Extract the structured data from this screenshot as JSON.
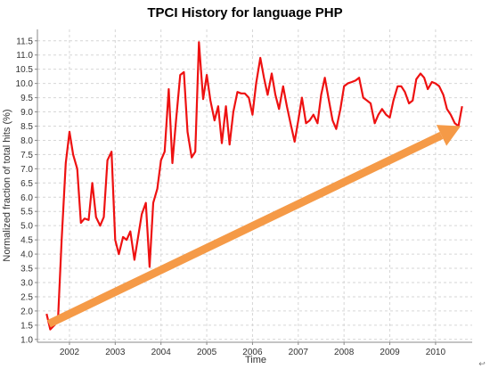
{
  "chart_data": {
    "type": "line",
    "title": "TPCI History for language PHP",
    "xlabel": "Time",
    "ylabel": "Normalized fraction of total hits (%)",
    "xlim": [
      2001.3,
      2010.8
    ],
    "ylim": [
      0.9,
      11.9
    ],
    "x_ticks": [
      2002,
      2003,
      2004,
      2005,
      2006,
      2007,
      2008,
      2009,
      2010
    ],
    "y_ticks": [
      1.0,
      1.5,
      2.0,
      2.5,
      3.0,
      3.5,
      4.0,
      4.5,
      5.0,
      5.5,
      6.0,
      6.5,
      7.0,
      7.5,
      8.0,
      8.5,
      9.0,
      9.5,
      10.0,
      10.5,
      11.0,
      11.5
    ],
    "grid": true,
    "series": [
      {
        "color": "#ee1111",
        "x": [
          2001.5,
          2001.58,
          2001.67,
          2001.75,
          2001.83,
          2001.92,
          2002.0,
          2002.08,
          2002.17,
          2002.25,
          2002.33,
          2002.42,
          2002.5,
          2002.58,
          2002.67,
          2002.75,
          2002.83,
          2002.92,
          2003.0,
          2003.08,
          2003.17,
          2003.25,
          2003.33,
          2003.42,
          2003.5,
          2003.58,
          2003.67,
          2003.75,
          2003.83,
          2003.92,
          2004.0,
          2004.08,
          2004.17,
          2004.25,
          2004.33,
          2004.42,
          2004.5,
          2004.58,
          2004.67,
          2004.75,
          2004.83,
          2004.92,
          2005.0,
          2005.08,
          2005.17,
          2005.25,
          2005.33,
          2005.42,
          2005.5,
          2005.58,
          2005.67,
          2005.75,
          2005.83,
          2005.92,
          2006.0,
          2006.08,
          2006.17,
          2006.25,
          2006.33,
          2006.42,
          2006.5,
          2006.58,
          2006.67,
          2006.75,
          2006.83,
          2006.92,
          2007.0,
          2007.08,
          2007.17,
          2007.25,
          2007.33,
          2007.42,
          2007.5,
          2007.58,
          2007.67,
          2007.75,
          2007.83,
          2007.92,
          2008.0,
          2008.08,
          2008.17,
          2008.25,
          2008.33,
          2008.42,
          2008.5,
          2008.58,
          2008.67,
          2008.75,
          2008.83,
          2008.92,
          2009.0,
          2009.08,
          2009.17,
          2009.25,
          2009.33,
          2009.42,
          2009.5,
          2009.58,
          2009.67,
          2009.75,
          2009.83,
          2009.92,
          2010.0,
          2010.08,
          2010.17,
          2010.25,
          2010.33,
          2010.42,
          2010.5,
          2010.58
        ],
        "values": [
          1.9,
          1.35,
          1.5,
          1.7,
          4.5,
          7.2,
          8.3,
          7.5,
          7.0,
          5.1,
          5.25,
          5.2,
          6.5,
          5.3,
          5.0,
          5.3,
          7.3,
          7.6,
          4.5,
          4.0,
          4.6,
          4.5,
          4.8,
          3.8,
          4.6,
          5.4,
          5.8,
          3.55,
          5.8,
          6.3,
          7.3,
          7.6,
          9.8,
          7.2,
          8.7,
          10.3,
          10.4,
          8.3,
          7.4,
          7.6,
          11.45,
          9.45,
          10.3,
          9.4,
          8.7,
          9.2,
          7.9,
          9.2,
          7.85,
          9.0,
          9.7,
          9.65,
          9.65,
          9.5,
          8.9,
          10.0,
          10.9,
          10.2,
          9.6,
          10.35,
          9.6,
          9.1,
          9.9,
          9.2,
          8.6,
          7.95,
          8.7,
          9.5,
          8.6,
          8.7,
          8.9,
          8.6,
          9.6,
          10.2,
          9.4,
          8.7,
          8.4,
          9.1,
          9.9,
          10.0,
          10.05,
          10.1,
          10.2,
          9.5,
          9.4,
          9.3,
          8.6,
          8.9,
          9.1,
          8.9,
          8.8,
          9.4,
          9.9,
          9.9,
          9.7,
          9.3,
          9.4,
          10.15,
          10.35,
          10.2,
          9.8,
          10.05,
          10.0,
          9.9,
          9.6,
          9.1,
          8.9,
          8.6,
          8.5,
          9.2
        ]
      }
    ],
    "annotations": [
      {
        "kind": "arrow",
        "color": "#f59a47",
        "from": [
          2001.55,
          1.55
        ],
        "to": [
          2010.55,
          8.5
        ]
      }
    ]
  },
  "ui": {
    "corner_glyph": "↩",
    "corner_glyph_icon": "return-arrow-icon"
  }
}
